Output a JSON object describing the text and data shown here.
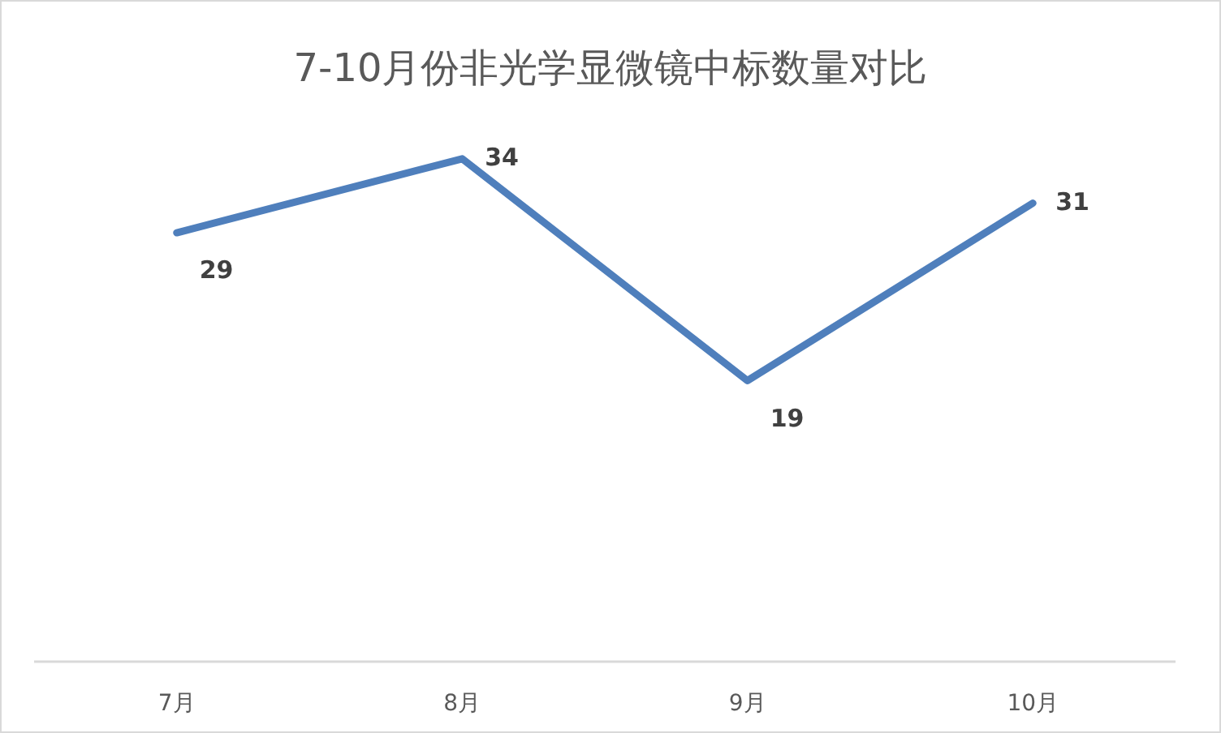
{
  "chart_data": {
    "type": "line",
    "title": "7-10月份非光学显微镜中标数量对比",
    "categories": [
      "7月",
      "8月",
      "9月",
      "10月"
    ],
    "series": [
      {
        "color": "#4f7fbc",
        "values": [
          29,
          34,
          19,
          31
        ]
      }
    ],
    "data_labels": true,
    "marker": "none",
    "line_style": "solid"
  }
}
